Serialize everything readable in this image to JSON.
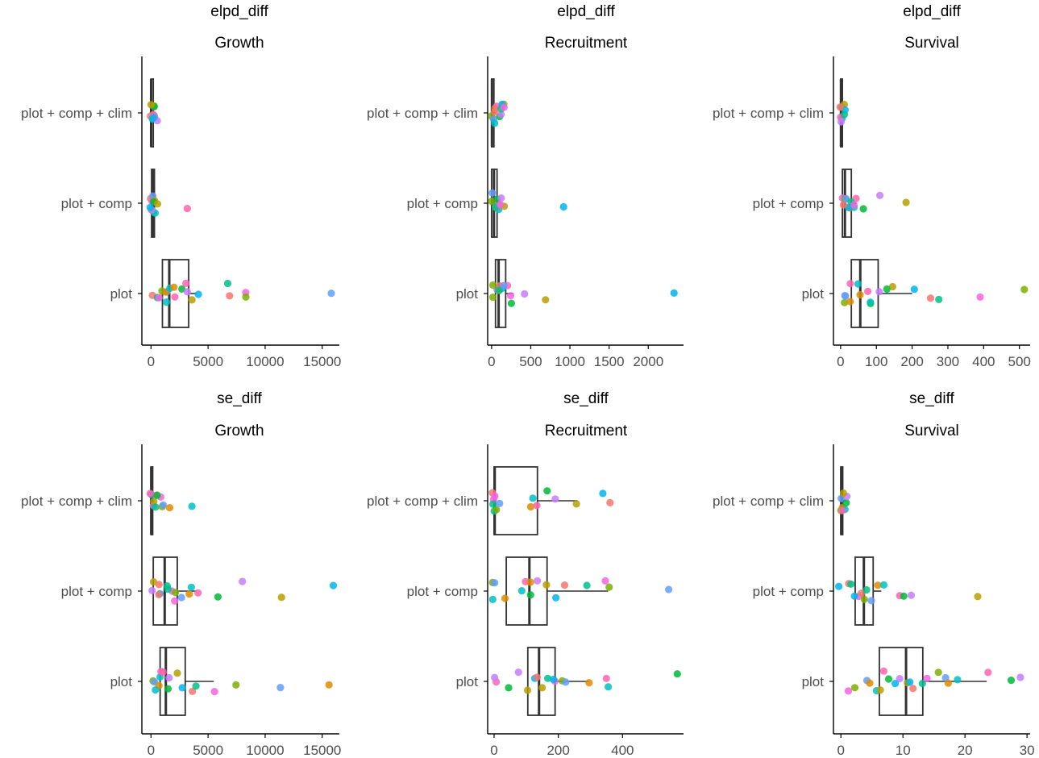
{
  "colors": {
    "palette": [
      "#F8766D",
      "#DE8C00",
      "#B79F00",
      "#7CAE00",
      "#00BA38",
      "#00C08B",
      "#00BFC4",
      "#00B4F0",
      "#619CFF",
      "#C77CFF",
      "#F564E3",
      "#FF64B0"
    ],
    "box": "#333333",
    "axis": "#000000"
  },
  "chart_data": [
    {
      "type": "box",
      "id": "p1",
      "title": "elpd_diff",
      "subtitle": "Growth",
      "categories": [
        "plot + comp + clim",
        "plot + comp",
        "plot"
      ],
      "xlim": [
        -800,
        16500
      ],
      "xticks": [
        0,
        5000,
        10000,
        15000
      ],
      "boxes": [
        {
          "q1": 0,
          "median": 10,
          "q3": 200,
          "whisker": 320
        },
        {
          "q1": 50,
          "median": 200,
          "q3": 300,
          "whisker": 500
        },
        {
          "q1": 1000,
          "median": 1600,
          "q3": 3300,
          "whisker": 4000
        }
      ],
      "points": [
        [
          0,
          30
        ],
        [
          0,
          60
        ],
        [
          0,
          90
        ],
        [
          0,
          120
        ],
        [
          0,
          180
        ],
        [
          0,
          210
        ],
        [
          0,
          250
        ],
        [
          0,
          320
        ],
        [
          0,
          150
        ],
        [
          0,
          400
        ],
        [
          0,
          20
        ],
        [
          0,
          260
        ],
        [
          1,
          20
        ],
        [
          1,
          60
        ],
        [
          1,
          120
        ],
        [
          1,
          180
        ],
        [
          1,
          240
        ],
        [
          1,
          300
        ],
        [
          1,
          380
        ],
        [
          1,
          3300
        ],
        [
          1,
          70
        ],
        [
          1,
          150
        ],
        [
          1,
          420
        ],
        [
          1,
          90
        ],
        [
          2,
          300
        ],
        [
          2,
          600
        ],
        [
          2,
          800
        ],
        [
          2,
          1000
        ],
        [
          2,
          1200
        ],
        [
          2,
          1500
        ],
        [
          2,
          1800
        ],
        [
          2,
          2300
        ],
        [
          2,
          2800
        ],
        [
          2,
          3300
        ],
        [
          2,
          3600
        ],
        [
          2,
          4000
        ],
        [
          2,
          6800
        ],
        [
          2,
          6700
        ],
        [
          2,
          8300
        ],
        [
          2,
          8400
        ],
        [
          2,
          15600
        ],
        [
          2,
          2000
        ],
        [
          2,
          1300
        ],
        [
          2,
          3000
        ]
      ]
    },
    {
      "type": "box",
      "id": "p2",
      "title": "elpd_diff",
      "subtitle": "Recruitment",
      "categories": [
        "plot + comp + clim",
        "plot + comp",
        "plot"
      ],
      "xlim": [
        -50,
        2450
      ],
      "xticks": [
        0,
        500,
        1000,
        1500,
        2000
      ],
      "boxes": [
        {
          "q1": 0,
          "median": 5,
          "q3": 30,
          "whisker": 60
        },
        {
          "q1": 0,
          "median": 30,
          "q3": 70,
          "whisker": 140
        },
        {
          "q1": 50,
          "median": 90,
          "q3": 180,
          "whisker": 280
        }
      ],
      "points": [
        [
          0,
          5
        ],
        [
          0,
          15
        ],
        [
          0,
          25
        ],
        [
          0,
          40
        ],
        [
          0,
          60
        ],
        [
          0,
          80
        ],
        [
          0,
          110
        ],
        [
          0,
          130
        ],
        [
          0,
          150
        ],
        [
          0,
          20
        ],
        [
          0,
          100
        ],
        [
          0,
          140
        ],
        [
          1,
          5
        ],
        [
          1,
          20
        ],
        [
          1,
          40
        ],
        [
          1,
          60
        ],
        [
          1,
          80
        ],
        [
          1,
          100
        ],
        [
          1,
          120
        ],
        [
          1,
          150
        ],
        [
          1,
          920
        ],
        [
          1,
          30
        ],
        [
          1,
          70
        ],
        [
          1,
          130
        ],
        [
          2,
          20
        ],
        [
          2,
          60
        ],
        [
          2,
          100
        ],
        [
          2,
          150
        ],
        [
          2,
          200
        ],
        [
          2,
          240
        ],
        [
          2,
          400
        ],
        [
          2,
          700
        ],
        [
          2,
          2330
        ],
        [
          2,
          80
        ],
        [
          2,
          130
        ],
        [
          2,
          250
        ],
        [
          2,
          40
        ],
        [
          2,
          180
        ]
      ]
    },
    {
      "type": "box",
      "id": "p3",
      "title": "elpd_diff",
      "subtitle": "Survival",
      "categories": [
        "plot + comp + clim",
        "plot + comp",
        "plot"
      ],
      "xlim": [
        -20,
        530
      ],
      "xticks": [
        0,
        100,
        200,
        300,
        400,
        500
      ],
      "boxes": [
        {
          "q1": 0,
          "median": 1,
          "q3": 5,
          "whisker": 8
        },
        {
          "q1": 5,
          "median": 12,
          "q3": 30,
          "whisker": 45
        },
        {
          "q1": 30,
          "median": 55,
          "q3": 105,
          "whisker": 200
        }
      ],
      "points": [
        [
          0,
          1
        ],
        [
          0,
          2
        ],
        [
          0,
          3
        ],
        [
          0,
          4
        ],
        [
          0,
          5
        ],
        [
          0,
          6
        ],
        [
          0,
          2
        ],
        [
          0,
          4
        ],
        [
          1,
          2
        ],
        [
          1,
          8
        ],
        [
          1,
          15
        ],
        [
          1,
          25
        ],
        [
          1,
          35
        ],
        [
          1,
          48
        ],
        [
          1,
          70
        ],
        [
          1,
          110
        ],
        [
          1,
          185
        ],
        [
          1,
          20
        ],
        [
          1,
          10
        ],
        [
          1,
          30
        ],
        [
          1,
          40
        ],
        [
          2,
          5
        ],
        [
          2,
          15
        ],
        [
          2,
          30
        ],
        [
          2,
          50
        ],
        [
          2,
          70
        ],
        [
          2,
          90
        ],
        [
          2,
          110
        ],
        [
          2,
          140
        ],
        [
          2,
          200
        ],
        [
          2,
          245
        ],
        [
          2,
          275
        ],
        [
          2,
          385
        ],
        [
          2,
          510
        ],
        [
          2,
          10
        ],
        [
          2,
          60
        ],
        [
          2,
          80
        ],
        [
          2,
          25
        ],
        [
          2,
          125
        ]
      ]
    },
    {
      "type": "box",
      "id": "p4",
      "title": "se_diff",
      "subtitle": "Growth",
      "categories": [
        "plot + comp + clim",
        "plot + comp",
        "plot"
      ],
      "xlim": [
        -800,
        16500
      ],
      "xticks": [
        0,
        5000,
        10000,
        15000
      ],
      "boxes": [
        {
          "q1": 0,
          "median": 20,
          "q3": 150,
          "whisker": 300
        },
        {
          "q1": 200,
          "median": 1200,
          "q3": 2300,
          "whisker": 4000
        },
        {
          "q1": 800,
          "median": 1300,
          "q3": 3000,
          "whisker": 5500
        }
      ],
      "points": [
        [
          0,
          20
        ],
        [
          0,
          80
        ],
        [
          0,
          200
        ],
        [
          0,
          350
        ],
        [
          0,
          500
        ],
        [
          0,
          700
        ],
        [
          0,
          900
        ],
        [
          0,
          1200
        ],
        [
          0,
          1500
        ],
        [
          0,
          3700
        ],
        [
          0,
          100
        ],
        [
          0,
          600
        ],
        [
          1,
          100
        ],
        [
          1,
          300
        ],
        [
          1,
          600
        ],
        [
          1,
          900
        ],
        [
          1,
          1300
        ],
        [
          1,
          1800
        ],
        [
          1,
          2300
        ],
        [
          1,
          2700
        ],
        [
          1,
          3300
        ],
        [
          1,
          3700
        ],
        [
          1,
          4100
        ],
        [
          1,
          5900
        ],
        [
          1,
          7800
        ],
        [
          1,
          11300
        ],
        [
          1,
          16100
        ],
        [
          1,
          500
        ],
        [
          1,
          1500
        ],
        [
          1,
          2000
        ],
        [
          2,
          100
        ],
        [
          2,
          300
        ],
        [
          2,
          600
        ],
        [
          2,
          900
        ],
        [
          2,
          1200
        ],
        [
          2,
          1500
        ],
        [
          2,
          1800
        ],
        [
          2,
          2100
        ],
        [
          2,
          2700
        ],
        [
          2,
          3500
        ],
        [
          2,
          3800
        ],
        [
          2,
          5500
        ],
        [
          2,
          7600
        ],
        [
          2,
          11400
        ],
        [
          2,
          15600
        ],
        [
          2,
          400
        ],
        [
          2,
          800
        ]
      ]
    },
    {
      "type": "box",
      "id": "p5",
      "title": "se_diff",
      "subtitle": "Recruitment",
      "categories": [
        "plot + comp + clim",
        "plot + comp",
        "plot"
      ],
      "xlim": [
        -20,
        590
      ],
      "xticks": [
        0,
        200,
        400
      ],
      "boxes": [
        {
          "q1": 0,
          "median": 2,
          "q3": 135,
          "whisker": 260
        },
        {
          "q1": 38,
          "median": 110,
          "q3": 165,
          "whisker": 355
        },
        {
          "q1": 105,
          "median": 140,
          "q3": 190,
          "whisker": 295
        }
      ],
      "points": [
        [
          0,
          0
        ],
        [
          0,
          2
        ],
        [
          0,
          5
        ],
        [
          0,
          8
        ],
        [
          0,
          10
        ],
        [
          0,
          110
        ],
        [
          0,
          125
        ],
        [
          0,
          140
        ],
        [
          0,
          160
        ],
        [
          0,
          185
        ],
        [
          0,
          260
        ],
        [
          0,
          345
        ],
        [
          0,
          360
        ],
        [
          0,
          3
        ],
        [
          0,
          6
        ],
        [
          1,
          0
        ],
        [
          1,
          5
        ],
        [
          1,
          40
        ],
        [
          1,
          80
        ],
        [
          1,
          95
        ],
        [
          1,
          115
        ],
        [
          1,
          140
        ],
        [
          1,
          160
        ],
        [
          1,
          190
        ],
        [
          1,
          220
        ],
        [
          1,
          285
        ],
        [
          1,
          350
        ],
        [
          1,
          360
        ],
        [
          1,
          545
        ],
        [
          1,
          120
        ],
        [
          1,
          2
        ],
        [
          2,
          0
        ],
        [
          2,
          50
        ],
        [
          2,
          80
        ],
        [
          2,
          100
        ],
        [
          2,
          120
        ],
        [
          2,
          140
        ],
        [
          2,
          165
        ],
        [
          2,
          190
        ],
        [
          2,
          210
        ],
        [
          2,
          230
        ],
        [
          2,
          290
        ],
        [
          2,
          350
        ],
        [
          2,
          350
        ],
        [
          2,
          570
        ],
        [
          2,
          2
        ],
        [
          2,
          150
        ],
        [
          2,
          180
        ]
      ]
    },
    {
      "type": "box",
      "id": "p6",
      "title": "se_diff",
      "subtitle": "Survival",
      "categories": [
        "plot + comp + clim",
        "plot + comp",
        "plot"
      ],
      "xlim": [
        -1.2,
        30.5
      ],
      "xticks": [
        0,
        10,
        20,
        30
      ],
      "boxes": [
        {
          "q1": 0,
          "median": 0.05,
          "q3": 0.3,
          "whisker": 0.8
        },
        {
          "q1": 2.3,
          "median": 3.7,
          "q3": 5.2,
          "whisker": 6.5
        },
        {
          "q1": 6.2,
          "median": 10.5,
          "q3": 13.2,
          "whisker": 23.5
        }
      ],
      "points": [
        [
          0,
          0
        ],
        [
          0,
          0.1
        ],
        [
          0,
          0.2
        ],
        [
          0,
          0.3
        ],
        [
          0,
          0.5
        ],
        [
          0,
          0.7
        ],
        [
          0,
          1.0
        ],
        [
          0,
          0.15
        ],
        [
          1,
          0
        ],
        [
          1,
          1.0
        ],
        [
          1,
          2.0
        ],
        [
          1,
          3.0
        ],
        [
          1,
          4.0
        ],
        [
          1,
          5.0
        ],
        [
          1,
          6.0
        ],
        [
          1,
          7.0
        ],
        [
          1,
          9.5
        ],
        [
          1,
          10.0
        ],
        [
          1,
          11.0
        ],
        [
          1,
          22.2
        ],
        [
          1,
          2.5
        ],
        [
          1,
          3.5
        ],
        [
          1,
          4.5
        ],
        [
          2,
          1.2
        ],
        [
          2,
          2.0
        ],
        [
          2,
          4.0
        ],
        [
          2,
          5.0
        ],
        [
          2,
          6.0
        ],
        [
          2,
          7.0
        ],
        [
          2,
          8.0
        ],
        [
          2,
          9.5
        ],
        [
          2,
          10.5
        ],
        [
          2,
          11.5
        ],
        [
          2,
          12.0
        ],
        [
          2,
          13.5
        ],
        [
          2,
          14.0
        ],
        [
          2,
          16.0
        ],
        [
          2,
          16.5
        ],
        [
          2,
          17.0
        ],
        [
          2,
          18.5
        ],
        [
          2,
          23.5
        ],
        [
          2,
          27.5
        ],
        [
          2,
          28.7
        ],
        [
          2,
          6.5
        ],
        [
          2,
          9.0
        ]
      ]
    }
  ]
}
